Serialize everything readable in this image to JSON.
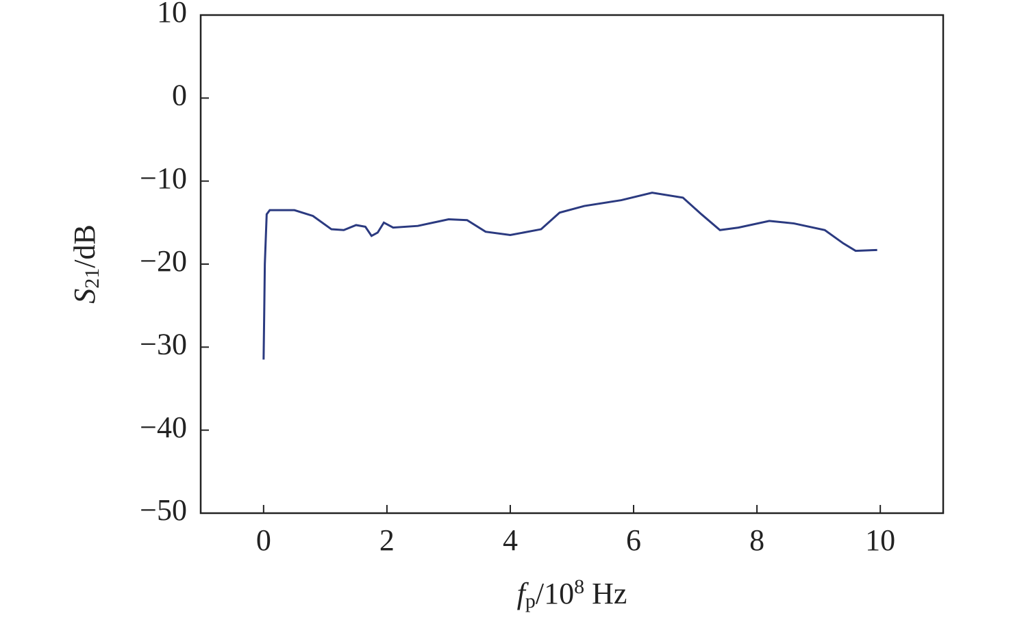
{
  "chart_data": {
    "type": "line",
    "xlabel": [
      "f",
      "p",
      "/10",
      "8",
      " Hz"
    ],
    "ylabel": [
      "S",
      "21",
      "/dB"
    ],
    "x": [
      0,
      0.01,
      0.02,
      0.05,
      0.1,
      0.5,
      0.8,
      1.1,
      1.3,
      1.5,
      1.65,
      1.75,
      1.85,
      1.95,
      2.1,
      2.5,
      3,
      3.3,
      3.6,
      4,
      4.5,
      4.8,
      5.2,
      5.8,
      6.3,
      6.8,
      7.1,
      7.4,
      7.7,
      8.2,
      8.6,
      9.1,
      9.4,
      9.6,
      9.95
    ],
    "series": [
      {
        "color": "#2b3a80",
        "values": [
          -31.5,
          -26,
          -20,
          -14,
          -13.5,
          -13.5,
          -14.2,
          -15.8,
          -15.9,
          -15.3,
          -15.5,
          -16.6,
          -16.2,
          -15,
          -15.6,
          -15.4,
          -14.6,
          -14.7,
          -16.1,
          -16.5,
          -15.8,
          -13.8,
          -13,
          -12.3,
          -11.4,
          -12,
          -14,
          -15.9,
          -15.6,
          -14.8,
          -15.1,
          -15.9,
          -17.5,
          -18.4,
          -18.3
        ]
      }
    ],
    "xlim": [
      -1.02,
      11.02
    ],
    "ylim": [
      -50,
      10
    ],
    "xticks": [
      0,
      2,
      4,
      6,
      8,
      10
    ],
    "yticks": [
      {
        "value": -50,
        "label": "−50"
      },
      {
        "value": -40,
        "label": "−40"
      },
      {
        "value": -30,
        "label": "−30"
      },
      {
        "value": -20,
        "label": "−20"
      },
      {
        "value": -10,
        "label": "−10"
      },
      0,
      10
    ]
  }
}
